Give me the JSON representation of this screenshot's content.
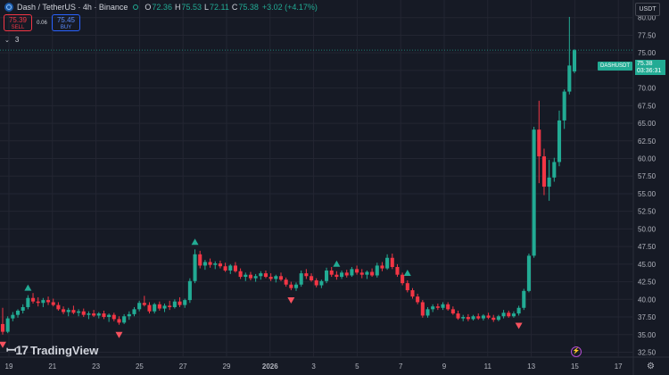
{
  "header": {
    "title": "Dash / TetherUS · 4h · Binance",
    "o_label": "O",
    "o_value": "72.36",
    "h_label": "H",
    "h_value": "75.53",
    "l_label": "L",
    "l_value": "72.11",
    "c_label": "C",
    "c_value": "75.38",
    "change": "+3.02 (+4.17%)"
  },
  "trade": {
    "sell_price": "75.39",
    "sell_label": "SELL",
    "spread": "0.06",
    "buy_price": "75.45",
    "buy_label": "BUY"
  },
  "indicators": {
    "count": "3"
  },
  "axis_currency": "USDT",
  "last_price": {
    "symbol": "DASHUSDT",
    "price": "75.38",
    "countdown": "03:36:31"
  },
  "logo_text": "TradingView",
  "colors": {
    "up": "#22ab94",
    "down": "#f23645",
    "background": "#161a25",
    "grid": "#232632"
  },
  "chart_data": {
    "type": "candlestick",
    "y_ticks": [
      "32.50",
      "35.00",
      "37.50",
      "40.00",
      "42.50",
      "45.00",
      "47.50",
      "50.00",
      "52.50",
      "55.00",
      "57.50",
      "60.00",
      "62.50",
      "65.00",
      "67.50",
      "70.00",
      "72.50",
      "75.00",
      "77.50",
      "80.00"
    ],
    "ylim": [
      31.8,
      82.5
    ],
    "x_ticks": [
      "19",
      "21",
      "23",
      "25",
      "27",
      "29",
      "2026",
      "3",
      "5",
      "7",
      "9",
      "11",
      "13",
      "15",
      "17"
    ],
    "candles": [
      [
        36.5,
        38.8,
        35.0,
        35.4
      ],
      [
        35.4,
        37.6,
        35.2,
        37.3
      ],
      [
        37.3,
        38.2,
        36.9,
        37.8
      ],
      [
        37.8,
        38.6,
        37.4,
        38.4
      ],
      [
        38.4,
        39.3,
        38.0,
        38.9
      ],
      [
        38.9,
        40.6,
        38.6,
        40.2
      ],
      [
        40.2,
        40.9,
        39.4,
        39.7
      ],
      [
        39.7,
        40.3,
        39.0,
        39.5
      ],
      [
        39.5,
        40.2,
        38.9,
        39.9
      ],
      [
        39.9,
        40.4,
        39.2,
        39.6
      ],
      [
        39.6,
        40.1,
        39.0,
        39.2
      ],
      [
        39.2,
        39.6,
        38.4,
        38.6
      ],
      [
        38.6,
        39.0,
        37.9,
        38.2
      ],
      [
        38.2,
        38.8,
        37.6,
        38.5
      ],
      [
        38.5,
        39.1,
        37.9,
        38.1
      ],
      [
        38.1,
        38.6,
        37.6,
        38.3
      ],
      [
        38.3,
        38.7,
        37.5,
        37.8
      ],
      [
        37.8,
        38.3,
        37.2,
        38.0
      ],
      [
        38.0,
        38.5,
        37.5,
        37.7
      ],
      [
        37.7,
        38.2,
        37.3,
        38.0
      ],
      [
        38.0,
        38.4,
        37.2,
        37.5
      ],
      [
        37.5,
        38.0,
        36.8,
        37.8
      ],
      [
        37.8,
        38.1,
        36.9,
        37.2
      ],
      [
        37.2,
        37.6,
        36.4,
        36.7
      ],
      [
        36.7,
        37.9,
        36.5,
        37.6
      ],
      [
        37.6,
        38.3,
        37.1,
        37.9
      ],
      [
        37.9,
        38.9,
        37.6,
        38.6
      ],
      [
        38.6,
        39.8,
        38.3,
        39.5
      ],
      [
        39.5,
        40.5,
        39.0,
        39.2
      ],
      [
        39.2,
        39.6,
        38.0,
        38.3
      ],
      [
        38.3,
        39.5,
        38.0,
        39.3
      ],
      [
        39.3,
        39.7,
        38.4,
        38.7
      ],
      [
        38.7,
        39.4,
        38.2,
        39.1
      ],
      [
        39.1,
        39.8,
        38.5,
        38.9
      ],
      [
        38.9,
        40.0,
        38.7,
        39.7
      ],
      [
        39.7,
        40.3,
        38.9,
        39.2
      ],
      [
        39.2,
        40.1,
        38.8,
        39.9
      ],
      [
        39.9,
        43.0,
        39.5,
        42.6
      ],
      [
        42.6,
        47.1,
        42.3,
        46.4
      ],
      [
        46.4,
        46.9,
        44.4,
        44.8
      ],
      [
        44.8,
        45.6,
        44.2,
        45.3
      ],
      [
        45.3,
        45.8,
        44.5,
        44.9
      ],
      [
        44.9,
        45.4,
        44.3,
        45.1
      ],
      [
        45.1,
        45.5,
        44.4,
        44.7
      ],
      [
        44.7,
        45.2,
        43.9,
        44.1
      ],
      [
        44.1,
        45.0,
        43.6,
        44.8
      ],
      [
        44.8,
        45.3,
        43.8,
        44.0
      ],
      [
        44.0,
        44.4,
        42.9,
        43.2
      ],
      [
        43.2,
        43.8,
        42.6,
        43.5
      ],
      [
        43.5,
        43.9,
        42.7,
        43.0
      ],
      [
        43.0,
        43.6,
        42.5,
        43.3
      ],
      [
        43.3,
        44.0,
        42.8,
        43.7
      ],
      [
        43.7,
        44.1,
        43.0,
        43.2
      ],
      [
        43.2,
        43.7,
        42.6,
        42.9
      ],
      [
        42.9,
        43.5,
        42.4,
        43.3
      ],
      [
        43.3,
        43.8,
        42.6,
        42.8
      ],
      [
        42.8,
        43.1,
        41.8,
        42.1
      ],
      [
        42.1,
        42.5,
        41.3,
        41.6
      ],
      [
        41.6,
        42.4,
        41.2,
        42.1
      ],
      [
        42.1,
        44.1,
        41.8,
        43.7
      ],
      [
        43.7,
        44.3,
        42.9,
        43.3
      ],
      [
        43.3,
        43.7,
        42.5,
        42.7
      ],
      [
        42.7,
        43.0,
        41.7,
        42.0
      ],
      [
        42.0,
        42.8,
        41.6,
        42.6
      ],
      [
        42.6,
        44.5,
        42.3,
        44.1
      ],
      [
        44.1,
        44.6,
        43.2,
        43.5
      ],
      [
        43.5,
        44.0,
        42.8,
        43.2
      ],
      [
        43.2,
        44.1,
        42.9,
        43.8
      ],
      [
        43.8,
        44.2,
        43.1,
        43.4
      ],
      [
        43.4,
        44.6,
        43.2,
        44.3
      ],
      [
        44.3,
        44.8,
        43.5,
        43.8
      ],
      [
        43.8,
        44.3,
        43.0,
        43.5
      ],
      [
        43.5,
        44.1,
        42.9,
        43.9
      ],
      [
        43.9,
        44.4,
        43.2,
        43.4
      ],
      [
        43.4,
        45.2,
        43.1,
        44.8
      ],
      [
        44.8,
        45.3,
        44.0,
        44.4
      ],
      [
        44.4,
        46.4,
        44.2,
        45.9
      ],
      [
        45.9,
        46.5,
        44.3,
        44.6
      ],
      [
        44.6,
        45.0,
        43.2,
        43.5
      ],
      [
        43.5,
        43.8,
        42.0,
        42.3
      ],
      [
        42.3,
        42.7,
        41.0,
        41.3
      ],
      [
        41.3,
        41.6,
        40.1,
        40.4
      ],
      [
        40.4,
        40.8,
        39.3,
        39.6
      ],
      [
        39.6,
        39.9,
        37.4,
        37.7
      ],
      [
        37.7,
        38.9,
        37.4,
        38.6
      ],
      [
        38.6,
        39.3,
        38.2,
        39.0
      ],
      [
        39.0,
        39.4,
        38.5,
        38.8
      ],
      [
        38.8,
        39.6,
        38.5,
        39.3
      ],
      [
        39.3,
        39.6,
        38.4,
        38.6
      ],
      [
        38.6,
        39.0,
        37.8,
        38.0
      ],
      [
        38.0,
        38.4,
        37.1,
        37.3
      ],
      [
        37.3,
        37.8,
        36.9,
        37.5
      ],
      [
        37.5,
        37.9,
        36.9,
        37.2
      ],
      [
        37.2,
        37.8,
        37.0,
        37.6
      ],
      [
        37.6,
        38.0,
        37.1,
        37.3
      ],
      [
        37.3,
        37.9,
        37.0,
        37.7
      ],
      [
        37.7,
        38.1,
        37.2,
        37.4
      ],
      [
        37.4,
        37.8,
        36.8,
        37.1
      ],
      [
        37.1,
        37.8,
        36.9,
        37.6
      ],
      [
        37.6,
        38.5,
        37.3,
        38.1
      ],
      [
        38.1,
        38.4,
        37.4,
        37.6
      ],
      [
        37.6,
        38.3,
        37.4,
        38.0
      ],
      [
        38.0,
        39.1,
        37.7,
        38.8
      ],
      [
        38.8,
        41.5,
        38.5,
        41.2
      ],
      [
        41.2,
        46.5,
        41.0,
        46.2
      ],
      [
        46.2,
        64.5,
        45.9,
        64.1
      ],
      [
        64.1,
        68.2,
        56.5,
        60.3
      ],
      [
        60.3,
        61.4,
        54.8,
        56.0
      ],
      [
        56.0,
        59.8,
        54.0,
        57.3
      ],
      [
        57.3,
        60.1,
        56.7,
        59.5
      ],
      [
        59.5,
        66.8,
        58.9,
        65.4
      ],
      [
        65.4,
        69.8,
        64.2,
        69.5
      ],
      [
        69.5,
        80.1,
        69.1,
        73.2
      ],
      [
        72.36,
        75.53,
        72.11,
        75.38
      ]
    ],
    "markers": [
      {
        "index": 0,
        "direction": "down"
      },
      {
        "index": 5,
        "direction": "up"
      },
      {
        "index": 23,
        "direction": "down"
      },
      {
        "index": 38,
        "direction": "up"
      },
      {
        "index": 57,
        "direction": "down"
      },
      {
        "index": 66,
        "direction": "up"
      },
      {
        "index": 80,
        "direction": "up"
      },
      {
        "index": 102,
        "direction": "down"
      }
    ]
  }
}
